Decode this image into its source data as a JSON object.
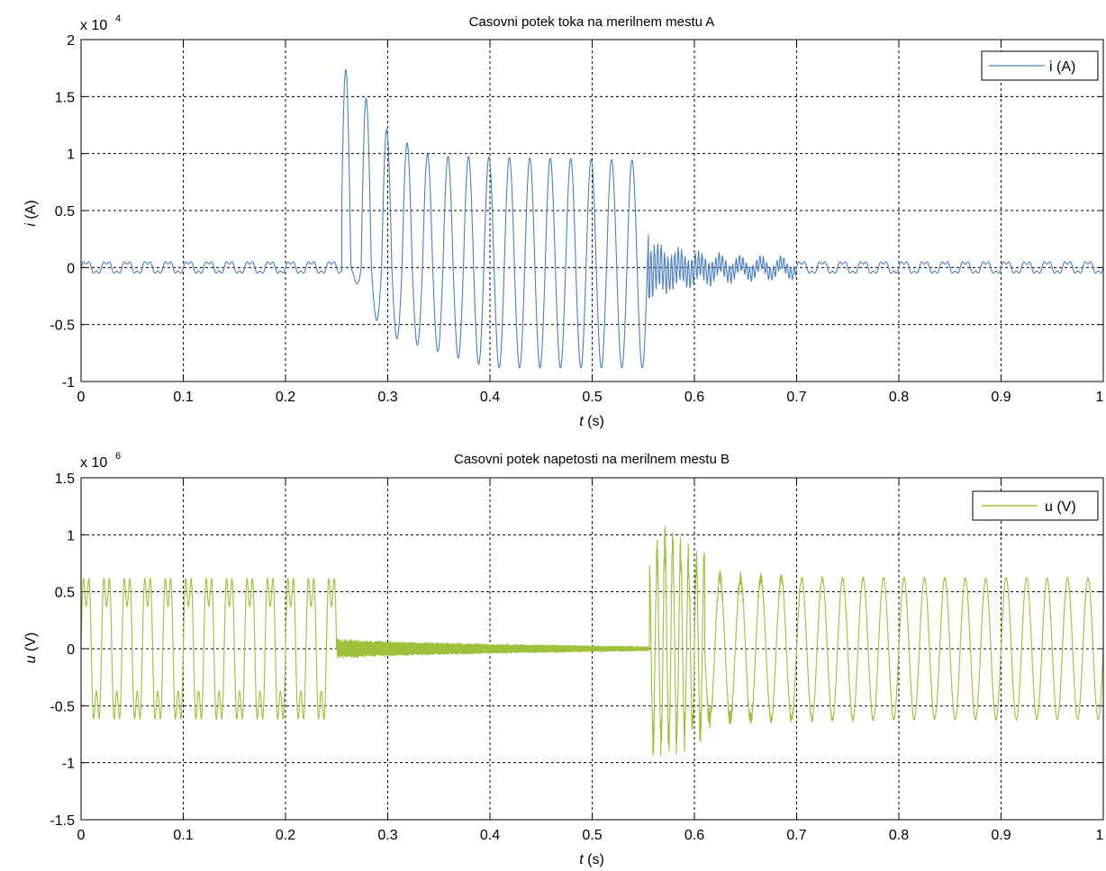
{
  "figure": {
    "charts": [
      {
        "title": "Casovni potek toka na merilnem mestu A",
        "xlabel_var": "t",
        "xlabel_unit": " (s)",
        "ylabel_var": "i",
        "ylabel_unit": " (A)",
        "multiplier_base": "x 10",
        "multiplier_exp": "4",
        "legend": "i (A)",
        "xticks": [
          "0",
          "0.1",
          "0.2",
          "0.3",
          "0.4",
          "0.5",
          "0.6",
          "0.7",
          "0.8",
          "0.9",
          "1"
        ],
        "yticks": [
          "2",
          "1.5",
          "1",
          "0.5",
          "0",
          "-0.5",
          "-1"
        ]
      },
      {
        "title": "Casovni potek napetosti na merilnem mestu B",
        "xlabel_var": "t",
        "xlabel_unit": " (s)",
        "ylabel_var": "u",
        "ylabel_unit": " (V)",
        "multiplier_base": "x 10",
        "multiplier_exp": "6",
        "legend": "u (V)",
        "xticks": [
          "0",
          "0.1",
          "0.2",
          "0.3",
          "0.4",
          "0.5",
          "0.6",
          "0.7",
          "0.8",
          "0.9",
          "1"
        ],
        "yticks": [
          "1.5",
          "1",
          "0.5",
          "0",
          "-0.5",
          "-1",
          "-1.5"
        ]
      }
    ]
  },
  "chart_data": [
    {
      "type": "line",
      "title": "Casovni potek toka na merilnem mestu A",
      "xlabel": "t (s)",
      "ylabel": "i (A)",
      "y_multiplier": 10000,
      "xlim": [
        0,
        1
      ],
      "ylim": [
        -1,
        2
      ],
      "grid": true,
      "legend_position": "top-right",
      "color": "#4a7fc0",
      "series": [
        {
          "name": "i (A)",
          "frequency_hz": 50,
          "segments": [
            {
              "t_start": 0.0,
              "t_end": 0.255,
              "shape": "steady",
              "amplitude": 0.05
            },
            {
              "t_start": 0.255,
              "t_end": 0.555,
              "shape": "fault",
              "peaks": [
                [
                  0.256,
                  1.77
                ],
                [
                  0.266,
                  -0.08
                ],
                [
                  0.275,
                  1.56
                ],
                [
                  0.284,
                  -0.4
                ],
                [
                  0.292,
                  1.24
                ],
                [
                  0.3,
                  -0.6
                ],
                [
                  0.309,
                  1.17
                ],
                [
                  0.326,
                  1.04
                ],
                [
                  0.343,
                  0.98
                ],
                [
                  0.4,
                  -0.88
                ],
                [
                  0.5,
                  -0.88
                ],
                [
                  0.55,
                  0.94
                ],
                [
                  0.552,
                  -0.88
                ]
              ]
            },
            {
              "t_start": 0.555,
              "t_end": 0.7,
              "shape": "decaying-oscillation",
              "peak_amplitude": 0.2
            },
            {
              "t_start": 0.7,
              "t_end": 1.0,
              "shape": "steady",
              "amplitude": 0.05
            }
          ]
        }
      ]
    },
    {
      "type": "line",
      "title": "Casovni potek napetosti na merilnem mestu B",
      "xlabel": "t (s)",
      "ylabel": "u (V)",
      "y_multiplier": 1000000,
      "xlim": [
        0,
        1
      ],
      "ylim": [
        -1.5,
        1.5
      ],
      "grid": true,
      "legend_position": "top-right",
      "color": "#9ec03a",
      "series": [
        {
          "name": "u (V)",
          "frequency_hz": 50,
          "segments": [
            {
              "t_start": 0.0,
              "t_end": 0.25,
              "shape": "steady",
              "amplitude": 0.62
            },
            {
              "t_start": 0.25,
              "t_end": 0.556,
              "shape": "collapse",
              "amplitude_start": 0.1,
              "amplitude_end": 0.02
            },
            {
              "t_start": 0.556,
              "t_end": 0.61,
              "shape": "transient-spikes",
              "peaks": [
                [
                  0.557,
                  0.87
                ],
                [
                  0.562,
                  -1.0
                ],
                [
                  0.573,
                  1.15
                ],
                [
                  0.578,
                  -1.0
                ],
                [
                  0.6,
                  0.92
                ],
                [
                  0.595,
                  -0.87
                ]
              ]
            },
            {
              "t_start": 0.61,
              "t_end": 1.0,
              "shape": "recovery",
              "amplitude": 0.62
            }
          ]
        }
      ]
    }
  ]
}
